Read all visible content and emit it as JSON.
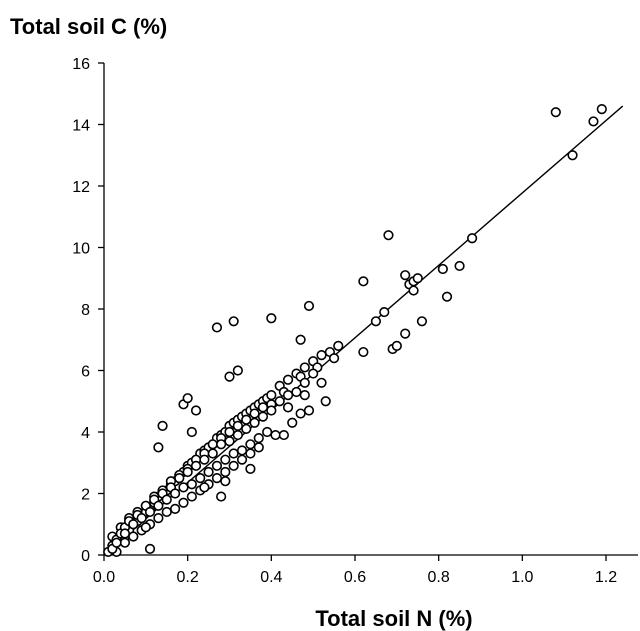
{
  "chart_data": {
    "type": "scatter",
    "title": "",
    "xlabel": "Total soil N (%)",
    "ylabel": "Total soil C (%)",
    "xlim": [
      0,
      1.25
    ],
    "ylim": [
      0,
      16
    ],
    "xticks": [
      "0.0",
      "0.2",
      "0.4",
      "0.6",
      "0.8",
      "1.0",
      "1.2"
    ],
    "yticks": [
      "0",
      "2",
      "4",
      "6",
      "8",
      "10",
      "12",
      "14",
      "16"
    ],
    "grid": false,
    "legend": "none",
    "marker": "open-circle",
    "colors": {
      "marker": "#000000",
      "line": "#000000",
      "axis": "#000000"
    },
    "series": [
      {
        "x": [
          0.02,
          0.03,
          0.04,
          0.05,
          0.06,
          0.07,
          0.08,
          0.09,
          0.1,
          0.11,
          0.12,
          0.13,
          0.14,
          0.15,
          0.16,
          0.17,
          0.18,
          0.19,
          0.2,
          0.21,
          0.22,
          0.23,
          0.24,
          0.25,
          0.26,
          0.27,
          0.28,
          0.29,
          0.3,
          0.31,
          0.32,
          0.33,
          0.34,
          0.35,
          0.36,
          0.37,
          0.38,
          0.39,
          0.4,
          0.42,
          0.44,
          0.46,
          0.48,
          0.5,
          0.52,
          0.54,
          0.56,
          0.02,
          0.04,
          0.06,
          0.08,
          0.1,
          0.12,
          0.14,
          0.16,
          0.18,
          0.2,
          0.22,
          0.24,
          0.26,
          0.28,
          0.3,
          0.32,
          0.34,
          0.36,
          0.38,
          0.4,
          0.43,
          0.47,
          0.51,
          0.55,
          0.03,
          0.05,
          0.07,
          0.09,
          0.11,
          0.13,
          0.15,
          0.17,
          0.19,
          0.21,
          0.23,
          0.25,
          0.27,
          0.29,
          0.31,
          0.33,
          0.35,
          0.37,
          0.41,
          0.45,
          0.49,
          0.53,
          0.01,
          0.02,
          0.03,
          0.04,
          0.05,
          0.06,
          0.08,
          0.1,
          0.12,
          0.14,
          0.16,
          0.18,
          0.2,
          0.22,
          0.24,
          0.26,
          0.28,
          0.3,
          0.32,
          0.34,
          0.36,
          0.38,
          0.4,
          0.42,
          0.44,
          0.46,
          0.48,
          0.5,
          0.02,
          0.03,
          0.05,
          0.07,
          0.09,
          0.11,
          0.13,
          0.15,
          0.17,
          0.19,
          0.21,
          0.23,
          0.25,
          0.27,
          0.29,
          0.31,
          0.33,
          0.35,
          0.37,
          0.39,
          0.44,
          0.48,
          0.52,
          0.14,
          0.13,
          0.19,
          0.2,
          0.22,
          0.27,
          0.31,
          0.32,
          0.4,
          0.49,
          0.47,
          0.3,
          0.28,
          0.43,
          0.47,
          0.21,
          0.24,
          0.11,
          0.1,
          0.07,
          0.29,
          0.35,
          0.62,
          0.62,
          0.65,
          0.67,
          0.68,
          0.69,
          0.7,
          0.72,
          0.72,
          0.73,
          0.74,
          0.74,
          0.75,
          0.76,
          0.81,
          0.82,
          0.85,
          0.88,
          1.08,
          1.12,
          1.17,
          1.19
        ],
        "y": [
          0.2,
          0.4,
          0.5,
          0.6,
          0.8,
          1.0,
          1.1,
          1.3,
          1.4,
          1.5,
          1.7,
          1.9,
          2.0,
          2.1,
          2.3,
          2.4,
          2.6,
          2.7,
          2.9,
          3.0,
          3.1,
          3.3,
          3.4,
          3.5,
          3.6,
          3.8,
          3.9,
          4.0,
          4.2,
          4.3,
          4.4,
          4.5,
          4.6,
          4.7,
          4.8,
          4.9,
          5.0,
          5.1,
          5.2,
          5.5,
          5.7,
          5.9,
          6.1,
          6.3,
          6.5,
          6.6,
          6.8,
          0.6,
          0.9,
          1.2,
          1.4,
          1.6,
          1.9,
          2.1,
          2.4,
          2.6,
          2.8,
          3.1,
          3.3,
          3.6,
          3.8,
          4.0,
          4.2,
          4.4,
          4.6,
          4.8,
          4.9,
          5.3,
          5.8,
          6.1,
          6.4,
          0.1,
          0.4,
          0.6,
          0.8,
          1.0,
          1.2,
          1.4,
          1.5,
          1.7,
          1.9,
          2.1,
          2.3,
          2.5,
          2.7,
          2.9,
          3.1,
          3.3,
          3.5,
          3.9,
          4.3,
          4.7,
          5.0,
          0.1,
          0.3,
          0.5,
          0.7,
          0.9,
          1.1,
          1.3,
          1.6,
          1.8,
          2.0,
          2.2,
          2.5,
          2.7,
          2.9,
          3.1,
          3.3,
          3.6,
          3.7,
          3.9,
          4.1,
          4.3,
          4.5,
          4.7,
          5.0,
          5.2,
          5.3,
          5.6,
          5.9,
          0.2,
          0.4,
          0.7,
          1.0,
          1.2,
          1.4,
          1.6,
          1.8,
          2.0,
          2.2,
          2.3,
          2.5,
          2.7,
          2.9,
          3.1,
          3.3,
          3.4,
          3.6,
          3.8,
          4.0,
          4.8,
          5.2,
          5.6,
          4.2,
          3.5,
          4.9,
          5.1,
          4.7,
          7.4,
          7.6,
          6.0,
          7.7,
          8.1,
          7.0,
          5.8,
          1.9,
          3.9,
          4.6,
          4.0,
          2.2,
          0.2,
          0.9,
          0.6,
          2.4,
          2.8,
          8.9,
          6.6,
          7.6,
          7.9,
          10.4,
          6.7,
          6.8,
          9.1,
          7.2,
          8.8,
          8.9,
          8.6,
          9.0,
          7.6,
          9.3,
          8.4,
          9.4,
          10.3,
          14.4,
          13.0,
          14.1,
          14.5
        ]
      }
    ],
    "trendline": {
      "x": [
        0.0,
        1.24
      ],
      "y": [
        0.0,
        14.6
      ]
    }
  }
}
